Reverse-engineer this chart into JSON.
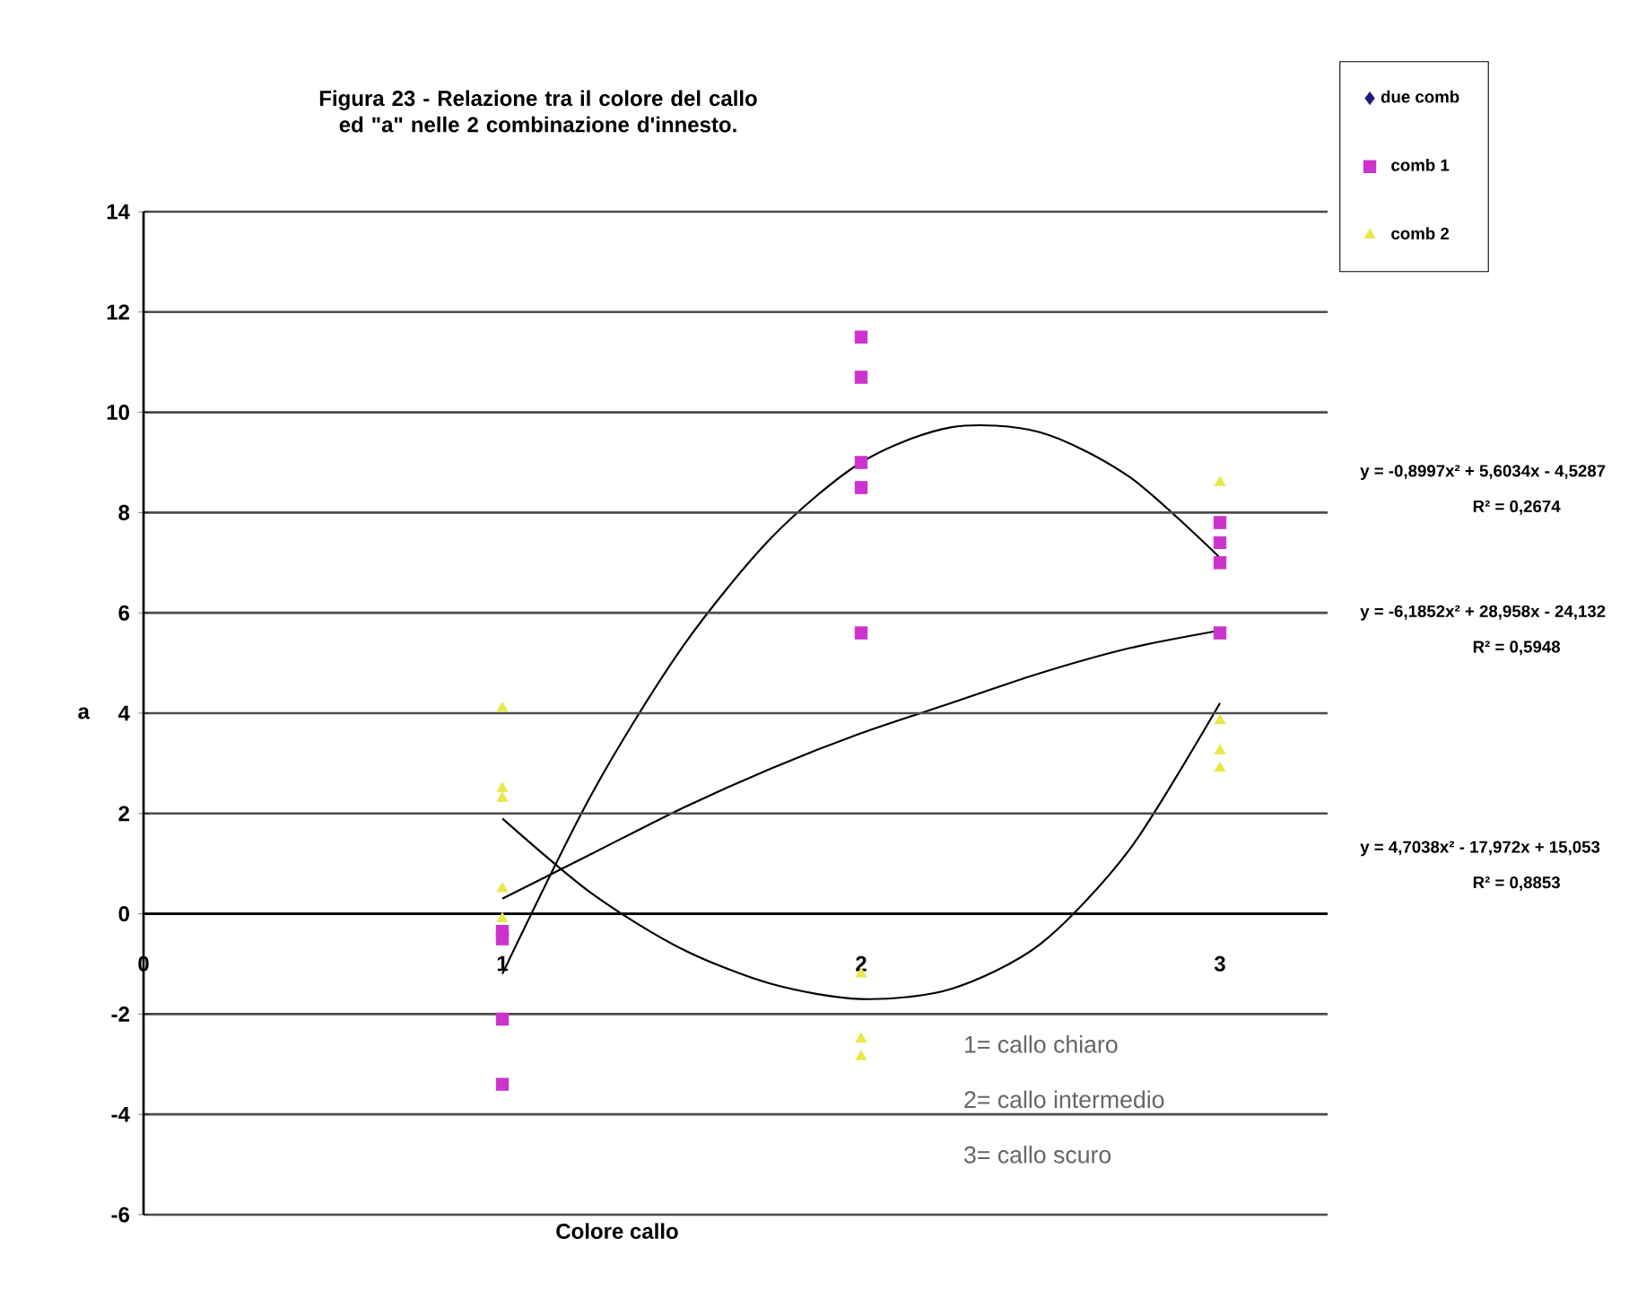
{
  "chart_data": {
    "type": "scatter",
    "title": "Figura 23 - Relazione tra il colore del callo ed \"a\" nelle 2 combinazione d'innesto.",
    "xlabel": "Colore callo",
    "ylabel": "a",
    "xlim": [
      0,
      3.3
    ],
    "xticks": [
      0,
      1,
      2,
      3
    ],
    "ylim": [
      -6,
      14
    ],
    "yticks": [
      -6,
      -4,
      -2,
      0,
      2,
      4,
      6,
      8,
      10,
      12,
      14
    ],
    "grid": "y",
    "legend": "top right",
    "series": [
      {
        "name": "due comb",
        "color": "#1f1f7a",
        "marker": "diamond"
      },
      {
        "name": "comb 1",
        "color": "#cc33cc",
        "marker": "square",
        "x": [
          1,
          1,
          1,
          1,
          2,
          2,
          2,
          2,
          2,
          3,
          3,
          3,
          3
        ],
        "values": [
          -0.35,
          -0.5,
          -2.1,
          -3.4,
          11.5,
          10.7,
          9.0,
          8.5,
          5.6,
          7.8,
          7.4,
          7.0,
          5.6
        ]
      },
      {
        "name": "comb 2",
        "color": "#e8e84a",
        "marker": "triangle",
        "x": [
          1,
          1,
          1,
          1,
          1,
          2,
          2,
          2,
          3,
          3,
          3,
          3
        ],
        "values": [
          4.1,
          2.5,
          2.3,
          0.5,
          -0.1,
          -1.2,
          -2.5,
          -2.85,
          8.6,
          3.85,
          3.25,
          2.9
        ]
      },
      {
        "type": "line",
        "color": "#000000",
        "x": [
          1,
          1.25,
          1.5,
          1.75,
          2,
          2.25,
          2.5,
          2.75,
          3
        ],
        "values": [
          -1.2,
          2.4,
          5.3,
          7.5,
          9.0,
          9.7,
          9.6,
          8.7,
          7.1
        ]
      },
      {
        "type": "line",
        "color": "#000000",
        "x": [
          1,
          1.25,
          1.5,
          1.75,
          2,
          2.25,
          2.5,
          2.75,
          3
        ],
        "values": [
          0.3,
          1.2,
          2.1,
          2.9,
          3.6,
          4.2,
          4.8,
          5.3,
          5.65
        ]
      },
      {
        "type": "line",
        "color": "#000000",
        "x": [
          1,
          1.25,
          1.5,
          1.75,
          2,
          2.25,
          2.5,
          2.75,
          3
        ],
        "values": [
          1.9,
          0.4,
          -0.7,
          -1.4,
          -1.7,
          -1.5,
          -0.6,
          1.3,
          4.2
        ]
      }
    ],
    "annotations": [
      "y = -0,8997x² + 5,6034x - 4,5287",
      "R² = 0,2674",
      "y = -6,1852x² + 28,958x - 24,132",
      "R² = 0,5948",
      "y = 4,7038x² - 17,972x + 15,053",
      "R² = 0,8853",
      "1= callo chiaro",
      "2= callo intermedio",
      "3= callo scuro"
    ]
  }
}
